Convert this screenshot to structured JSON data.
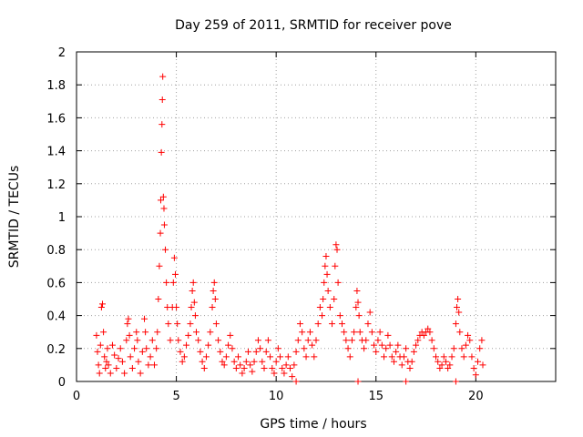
{
  "chart_data": {
    "type": "scatter",
    "title": "Day 259 of 2011, SRMTID for receiver pove",
    "xlabel": "GPS time / hours",
    "ylabel": "SRMTID / TECUs",
    "xlim": [
      0,
      24
    ],
    "ylim": [
      0,
      2
    ],
    "xticks": [
      "0",
      "5",
      "10",
      "15",
      "20"
    ],
    "yticks": [
      "0",
      "0.2",
      "0.4",
      "0.6",
      "0.8",
      "1",
      "1.2",
      "1.4",
      "1.6",
      "1.8",
      "2"
    ],
    "grid": true,
    "marker": "+",
    "color": "#ff0000",
    "series": [
      {
        "points": [
          [
            1.0,
            0.28
          ],
          [
            1.05,
            0.18
          ],
          [
            1.1,
            0.1
          ],
          [
            1.15,
            0.05
          ],
          [
            1.2,
            0.22
          ],
          [
            1.25,
            0.45
          ],
          [
            1.3,
            0.47
          ],
          [
            1.35,
            0.3
          ],
          [
            1.4,
            0.15
          ],
          [
            1.45,
            0.08
          ],
          [
            1.5,
            0.12
          ],
          [
            1.55,
            0.2
          ],
          [
            1.6,
            0.1
          ],
          [
            1.7,
            0.05
          ],
          [
            1.8,
            0.22
          ],
          [
            1.9,
            0.16
          ],
          [
            2.0,
            0.08
          ],
          [
            2.1,
            0.14
          ],
          [
            2.2,
            0.2
          ],
          [
            2.3,
            0.12
          ],
          [
            2.4,
            0.05
          ],
          [
            2.5,
            0.25
          ],
          [
            2.55,
            0.35
          ],
          [
            2.6,
            0.38
          ],
          [
            2.65,
            0.28
          ],
          [
            2.7,
            0.15
          ],
          [
            2.8,
            0.08
          ],
          [
            2.9,
            0.2
          ],
          [
            3.0,
            0.3
          ],
          [
            3.05,
            0.25
          ],
          [
            3.1,
            0.12
          ],
          [
            3.2,
            0.05
          ],
          [
            3.3,
            0.18
          ],
          [
            3.4,
            0.38
          ],
          [
            3.45,
            0.3
          ],
          [
            3.5,
            0.2
          ],
          [
            3.6,
            0.1
          ],
          [
            3.7,
            0.15
          ],
          [
            3.8,
            0.25
          ],
          [
            3.9,
            0.1
          ],
          [
            4.0,
            0.2
          ],
          [
            4.05,
            0.3
          ],
          [
            4.1,
            0.5
          ],
          [
            4.15,
            0.7
          ],
          [
            4.2,
            0.9
          ],
          [
            4.22,
            1.1
          ],
          [
            4.25,
            1.39
          ],
          [
            4.28,
            1.56
          ],
          [
            4.3,
            1.71
          ],
          [
            4.32,
            1.85
          ],
          [
            4.35,
            1.12
          ],
          [
            4.38,
            1.05
          ],
          [
            4.4,
            0.95
          ],
          [
            4.45,
            0.8
          ],
          [
            4.5,
            0.6
          ],
          [
            4.55,
            0.45
          ],
          [
            4.6,
            0.35
          ],
          [
            4.7,
            0.25
          ],
          [
            4.8,
            0.45
          ],
          [
            4.85,
            0.6
          ],
          [
            4.9,
            0.75
          ],
          [
            4.95,
            0.65
          ],
          [
            5.0,
            0.45
          ],
          [
            5.05,
            0.35
          ],
          [
            5.1,
            0.25
          ],
          [
            5.2,
            0.18
          ],
          [
            5.3,
            0.12
          ],
          [
            5.4,
            0.15
          ],
          [
            5.5,
            0.22
          ],
          [
            5.6,
            0.28
          ],
          [
            5.7,
            0.35
          ],
          [
            5.75,
            0.45
          ],
          [
            5.8,
            0.55
          ],
          [
            5.85,
            0.6
          ],
          [
            5.9,
            0.48
          ],
          [
            5.95,
            0.4
          ],
          [
            6.0,
            0.3
          ],
          [
            6.1,
            0.25
          ],
          [
            6.2,
            0.18
          ],
          [
            6.3,
            0.12
          ],
          [
            6.4,
            0.08
          ],
          [
            6.5,
            0.15
          ],
          [
            6.6,
            0.22
          ],
          [
            6.7,
            0.3
          ],
          [
            6.8,
            0.45
          ],
          [
            6.85,
            0.55
          ],
          [
            6.9,
            0.6
          ],
          [
            6.95,
            0.5
          ],
          [
            7.0,
            0.35
          ],
          [
            7.1,
            0.25
          ],
          [
            7.2,
            0.18
          ],
          [
            7.3,
            0.12
          ],
          [
            7.4,
            0.1
          ],
          [
            7.5,
            0.15
          ],
          [
            7.6,
            0.22
          ],
          [
            7.7,
            0.28
          ],
          [
            7.8,
            0.2
          ],
          [
            7.9,
            0.12
          ],
          [
            8.0,
            0.08
          ],
          [
            8.1,
            0.15
          ],
          [
            8.2,
            0.1
          ],
          [
            8.3,
            0.05
          ],
          [
            8.4,
            0.08
          ],
          [
            8.5,
            0.12
          ],
          [
            8.6,
            0.18
          ],
          [
            8.7,
            0.1
          ],
          [
            8.8,
            0.06
          ],
          [
            8.9,
            0.12
          ],
          [
            9.0,
            0.18
          ],
          [
            9.1,
            0.25
          ],
          [
            9.2,
            0.2
          ],
          [
            9.3,
            0.12
          ],
          [
            9.4,
            0.08
          ],
          [
            9.5,
            0.18
          ],
          [
            9.6,
            0.25
          ],
          [
            9.7,
            0.15
          ],
          [
            9.8,
            0.08
          ],
          [
            9.9,
            0.05
          ],
          [
            10.0,
            0.12
          ],
          [
            10.1,
            0.2
          ],
          [
            10.2,
            0.15
          ],
          [
            10.3,
            0.08
          ],
          [
            10.4,
            0.05
          ],
          [
            10.5,
            0.1
          ],
          [
            10.6,
            0.15
          ],
          [
            10.7,
            0.08
          ],
          [
            10.8,
            0.03
          ],
          [
            10.9,
            0.1
          ],
          [
            11.0,
            0.18
          ],
          [
            11.1,
            0.25
          ],
          [
            11.2,
            0.35
          ],
          [
            11.3,
            0.3
          ],
          [
            11.4,
            0.2
          ],
          [
            11.5,
            0.15
          ],
          [
            11.6,
            0.25
          ],
          [
            11.7,
            0.3
          ],
          [
            11.8,
            0.22
          ],
          [
            11.9,
            0.15
          ],
          [
            12.0,
            0.25
          ],
          [
            12.1,
            0.35
          ],
          [
            12.2,
            0.45
          ],
          [
            12.3,
            0.4
          ],
          [
            12.35,
            0.5
          ],
          [
            12.4,
            0.6
          ],
          [
            12.45,
            0.7
          ],
          [
            12.5,
            0.76
          ],
          [
            12.55,
            0.65
          ],
          [
            12.6,
            0.55
          ],
          [
            12.7,
            0.45
          ],
          [
            12.8,
            0.35
          ],
          [
            12.9,
            0.5
          ],
          [
            12.95,
            0.7
          ],
          [
            13.0,
            0.83
          ],
          [
            13.05,
            0.8
          ],
          [
            13.1,
            0.6
          ],
          [
            13.2,
            0.4
          ],
          [
            13.3,
            0.35
          ],
          [
            13.4,
            0.3
          ],
          [
            13.5,
            0.25
          ],
          [
            13.6,
            0.2
          ],
          [
            13.7,
            0.15
          ],
          [
            13.8,
            0.25
          ],
          [
            13.9,
            0.3
          ],
          [
            14.0,
            0.45
          ],
          [
            14.05,
            0.55
          ],
          [
            14.1,
            0.48
          ],
          [
            14.15,
            0.4
          ],
          [
            14.2,
            0.3
          ],
          [
            14.3,
            0.25
          ],
          [
            14.4,
            0.2
          ],
          [
            14.5,
            0.25
          ],
          [
            14.6,
            0.35
          ],
          [
            14.7,
            0.42
          ],
          [
            14.8,
            0.3
          ],
          [
            14.9,
            0.22
          ],
          [
            15.0,
            0.18
          ],
          [
            15.1,
            0.25
          ],
          [
            15.2,
            0.3
          ],
          [
            15.3,
            0.22
          ],
          [
            15.4,
            0.15
          ],
          [
            15.5,
            0.2
          ],
          [
            15.6,
            0.28
          ],
          [
            15.7,
            0.22
          ],
          [
            15.8,
            0.15
          ],
          [
            15.9,
            0.12
          ],
          [
            16.0,
            0.18
          ],
          [
            16.1,
            0.22
          ],
          [
            16.2,
            0.15
          ],
          [
            16.3,
            0.1
          ],
          [
            16.4,
            0.15
          ],
          [
            16.5,
            0.2
          ],
          [
            16.6,
            0.12
          ],
          [
            16.7,
            0.08
          ],
          [
            16.8,
            0.12
          ],
          [
            16.9,
            0.18
          ],
          [
            17.0,
            0.22
          ],
          [
            17.1,
            0.25
          ],
          [
            17.2,
            0.28
          ],
          [
            17.3,
            0.3
          ],
          [
            17.4,
            0.28
          ],
          [
            17.5,
            0.3
          ],
          [
            17.6,
            0.32
          ],
          [
            17.7,
            0.3
          ],
          [
            17.8,
            0.25
          ],
          [
            17.9,
            0.2
          ],
          [
            18.0,
            0.15
          ],
          [
            18.1,
            0.12
          ],
          [
            18.2,
            0.08
          ],
          [
            18.3,
            0.1
          ],
          [
            18.4,
            0.15
          ],
          [
            18.5,
            0.12
          ],
          [
            18.6,
            0.08
          ],
          [
            18.7,
            0.1
          ],
          [
            18.8,
            0.15
          ],
          [
            18.9,
            0.2
          ],
          [
            19.0,
            0.35
          ],
          [
            19.05,
            0.45
          ],
          [
            19.1,
            0.5
          ],
          [
            19.15,
            0.42
          ],
          [
            19.2,
            0.3
          ],
          [
            19.3,
            0.2
          ],
          [
            19.4,
            0.15
          ],
          [
            19.5,
            0.22
          ],
          [
            19.6,
            0.28
          ],
          [
            19.7,
            0.25
          ],
          [
            19.8,
            0.15
          ],
          [
            19.9,
            0.08
          ],
          [
            20.0,
            0.04
          ],
          [
            20.1,
            0.12
          ],
          [
            20.2,
            0.2
          ],
          [
            20.3,
            0.25
          ],
          [
            20.35,
            0.1
          ],
          [
            14.1,
            0.0
          ],
          [
            11.0,
            0.0
          ],
          [
            16.5,
            0.0
          ],
          [
            19.0,
            0.0
          ]
        ]
      }
    ]
  }
}
